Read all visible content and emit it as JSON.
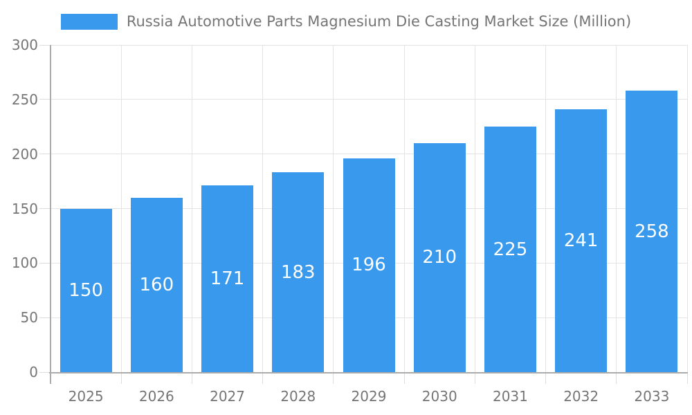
{
  "chart_data": {
    "type": "bar",
    "title": "Russia Automotive Parts Magnesium Die Casting Market Size (Million)",
    "categories": [
      "2025",
      "2026",
      "2027",
      "2028",
      "2029",
      "2030",
      "2031",
      "2032",
      "2033"
    ],
    "values": [
      150,
      160,
      171,
      183,
      196,
      210,
      225,
      241,
      258
    ],
    "series_name": "Russia Automotive Parts Magnesium Die Casting Market Size (Million)",
    "y_ticks": [
      0,
      50,
      100,
      150,
      200,
      250,
      300
    ],
    "ylim": [
      0,
      300
    ],
    "xlabel": "",
    "ylabel": "",
    "grid": true,
    "legend_position": "top-center",
    "bar_color": "#3899ED",
    "value_label_color": "#FFFFFF",
    "value_label_position": "inside-center"
  },
  "colors": {
    "accent_blue": "#3899ED",
    "gridline": "#E3E3E3",
    "tick": "#DCDCDC",
    "axis": "#ABABAB",
    "text": "#757575",
    "background": "#FFFFFF"
  }
}
